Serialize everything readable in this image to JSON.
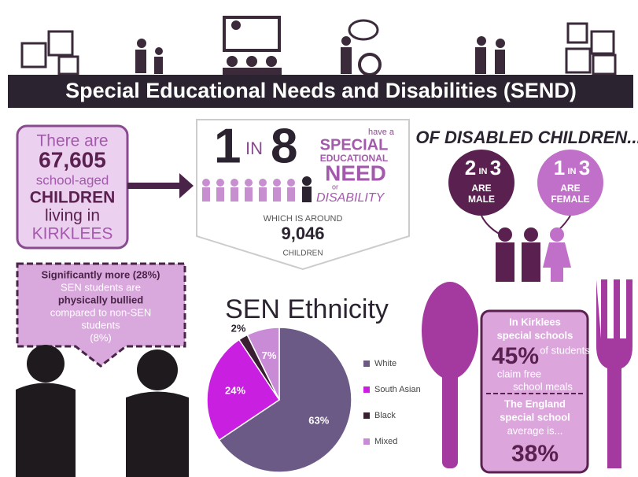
{
  "header": {
    "title": "Special Educational Needs and Disabilities (SEND)"
  },
  "population": {
    "lines": [
      "There are",
      "67,605",
      "school-aged",
      "CHILDREN",
      "living in",
      "KIRKLEES"
    ]
  },
  "ratio": {
    "one": "1",
    "in": "IN",
    "eight": "8",
    "have_a": "have a",
    "special": "SPECIAL",
    "educational": "EDUCATIONAL",
    "need": "NEED",
    "or": "or",
    "disability": "DISABILITY",
    "around": "WHICH IS AROUND",
    "count": "9,046",
    "children": "CHILDREN"
  },
  "gender": {
    "heading": "OF DISABLED CHILDREN...",
    "male": {
      "a": "2",
      "in": "IN",
      "b": "3",
      "label1": "ARE",
      "label2": "MALE"
    },
    "female": {
      "a": "1",
      "in": "IN",
      "b": "3",
      "label1": "ARE",
      "label2": "FEMALE"
    }
  },
  "bullying": {
    "lines": [
      "Significantly more (28%)",
      "SEN students are",
      "physically bullied",
      "compared to non-SEN",
      "students",
      "(8%)"
    ]
  },
  "meals": {
    "lines": [
      "In Kirklees",
      "special schools",
      "45%",
      "of students",
      "claim free",
      "school meals",
      "The England",
      "special school",
      "average is...",
      "38%"
    ]
  },
  "chart_data": {
    "type": "pie",
    "title": "SEN Ethnicity",
    "categories": [
      "White",
      "South Asian",
      "Black",
      "Mixed"
    ],
    "values": [
      63,
      24,
      2,
      7
    ],
    "value_labels": [
      "63%",
      "24%",
      "2%",
      "7%"
    ],
    "colors": [
      "#6b5a86",
      "#c81fe0",
      "#3a1f33",
      "#c98ad6"
    ]
  }
}
